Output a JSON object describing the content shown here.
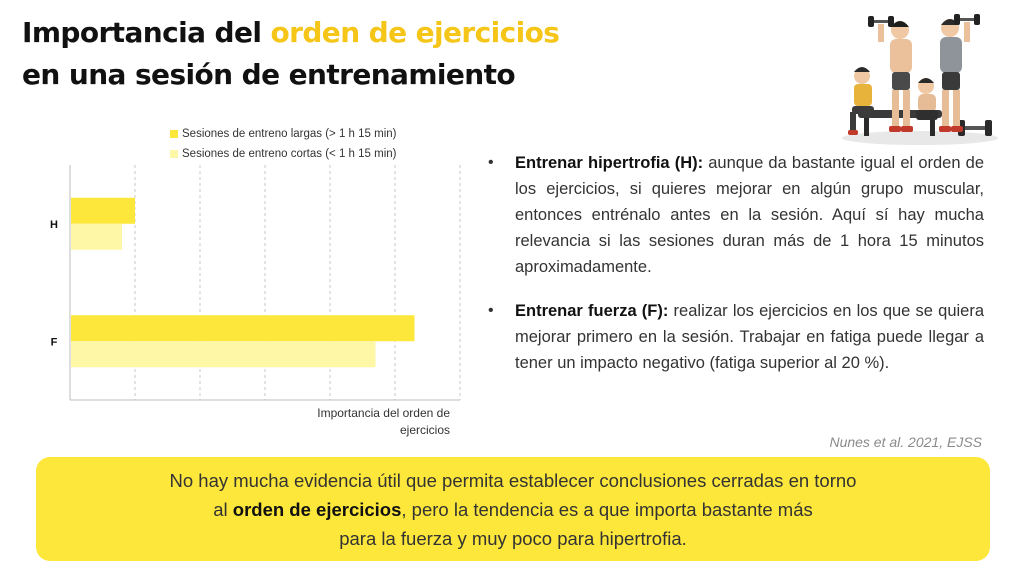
{
  "title": {
    "part1": "Importancia del ",
    "highlight": "orden de ejercicios",
    "line2": "en una sesión de entrenamiento"
  },
  "illustration": {
    "icon": "gym-athletes-with-dumbbells-illustration"
  },
  "colors": {
    "accent": "#f5c518",
    "bar_long": "#fde73a",
    "bar_short": "#fdf7a6",
    "box_background": "#fde73a",
    "citation": "#8a8a8a"
  },
  "chart_data": {
    "type": "bar",
    "orientation": "horizontal",
    "categories": [
      "H",
      "F"
    ],
    "series": [
      {
        "name": "Sesiones de entreno largas (> 1 h 15 min)",
        "values": [
          1,
          5.3
        ]
      },
      {
        "name": "Sesiones de entreno cortas (< 1 h 15 min)",
        "values": [
          0.8,
          4.7
        ]
      }
    ],
    "xlabel": "Importancia del orden de ejercicios",
    "xlim": [
      0,
      6
    ],
    "grid": true,
    "legend": "top"
  },
  "bullets": [
    {
      "bold": "Entrenar hipertrofia (H):",
      "text": " aunque da bastante igual el orden de los ejercicios, si quieres mejorar en algún grupo muscular, entonces entrénalo antes en la sesión. Aquí sí hay mucha relevancia si las sesiones duran más de 1 hora 15 minutos aproximadamente."
    },
    {
      "bold": "Entrenar fuerza (F):",
      "text": " realizar los ejercicios en los que se quiera mejorar primero en la sesión. Trabajar en fatiga puede llegar a tener un impacto negativo (fatiga superior al 20 %)."
    }
  ],
  "citation": "Nunes et al. 2021, EJSS",
  "conclusion": {
    "line1": "No hay mucha evidencia útil que permita establecer conclusiones cerradas en torno",
    "line2_pre": "al ",
    "line2_bold": "orden de ejercicios",
    "line2_post": ", pero la tendencia es a que importa bastante más",
    "line3": "para la fuerza y muy poco para hipertrofia."
  }
}
